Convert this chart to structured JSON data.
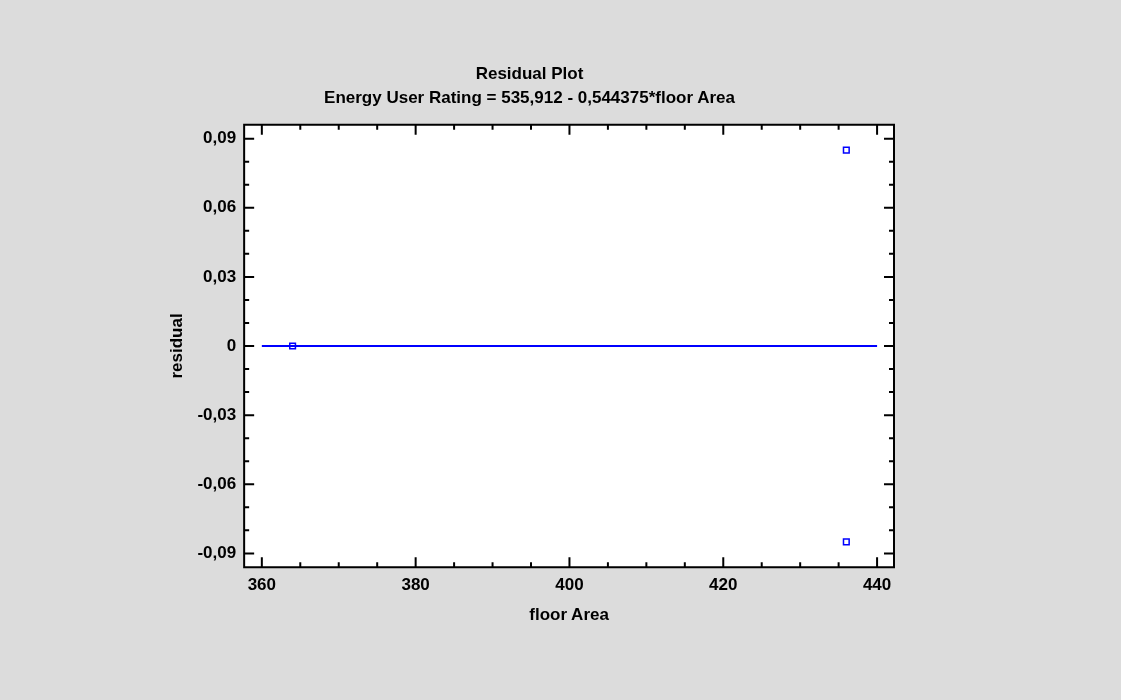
{
  "chart_data": {
    "type": "scatter",
    "title": "Residual Plot",
    "subtitle": "Energy User Rating = 535,912 - 0,544375*floor Area",
    "xlabel": "floor Area",
    "ylabel": "residual",
    "series": [
      {
        "type": "scatter",
        "color": "#0000ff",
        "marker": "square",
        "x": [
          364,
          436,
          436
        ],
        "values": [
          0,
          0.085,
          -0.085
        ]
      },
      {
        "type": "line",
        "color": "#0000ff",
        "marker": "none",
        "x": [
          360,
          440
        ],
        "values": [
          0,
          0
        ]
      }
    ],
    "xlim": [
      357.7,
      442.2
    ],
    "ylim": [
      -0.096,
      0.096
    ],
    "xticks": [
      360,
      {
        "value": 365,
        "label": null
      },
      {
        "value": 370,
        "label": null
      },
      {
        "value": 375,
        "label": null
      },
      380,
      {
        "value": 385,
        "label": null
      },
      {
        "value": 390,
        "label": null
      },
      {
        "value": 395,
        "label": null
      },
      400,
      {
        "value": 405,
        "label": null
      },
      {
        "value": 410,
        "label": null
      },
      {
        "value": 415,
        "label": null
      },
      420,
      {
        "value": 425,
        "label": null
      },
      {
        "value": 430,
        "label": null
      },
      {
        "value": 435,
        "label": null
      },
      440
    ],
    "yticks": [
      {
        "value": -0.09,
        "label": "-0,09"
      },
      {
        "value": -0.08,
        "label": null
      },
      {
        "value": -0.07,
        "label": null
      },
      {
        "value": -0.06,
        "label": "-0,06"
      },
      {
        "value": -0.05,
        "label": null
      },
      {
        "value": -0.04,
        "label": null
      },
      {
        "value": -0.03,
        "label": "-0,03"
      },
      {
        "value": -0.02,
        "label": null
      },
      {
        "value": -0.01,
        "label": null
      },
      0,
      {
        "value": 0.01,
        "label": null
      },
      {
        "value": 0.02,
        "label": null
      },
      {
        "value": 0.03,
        "label": "0,03"
      },
      {
        "value": 0.04,
        "label": null
      },
      {
        "value": 0.05,
        "label": null
      },
      {
        "value": 0.06,
        "label": "0,06"
      },
      {
        "value": 0.07,
        "label": null
      },
      {
        "value": 0.08,
        "label": null
      },
      {
        "value": 0.09,
        "label": "0,09"
      }
    ],
    "grid": false,
    "legend": false
  }
}
